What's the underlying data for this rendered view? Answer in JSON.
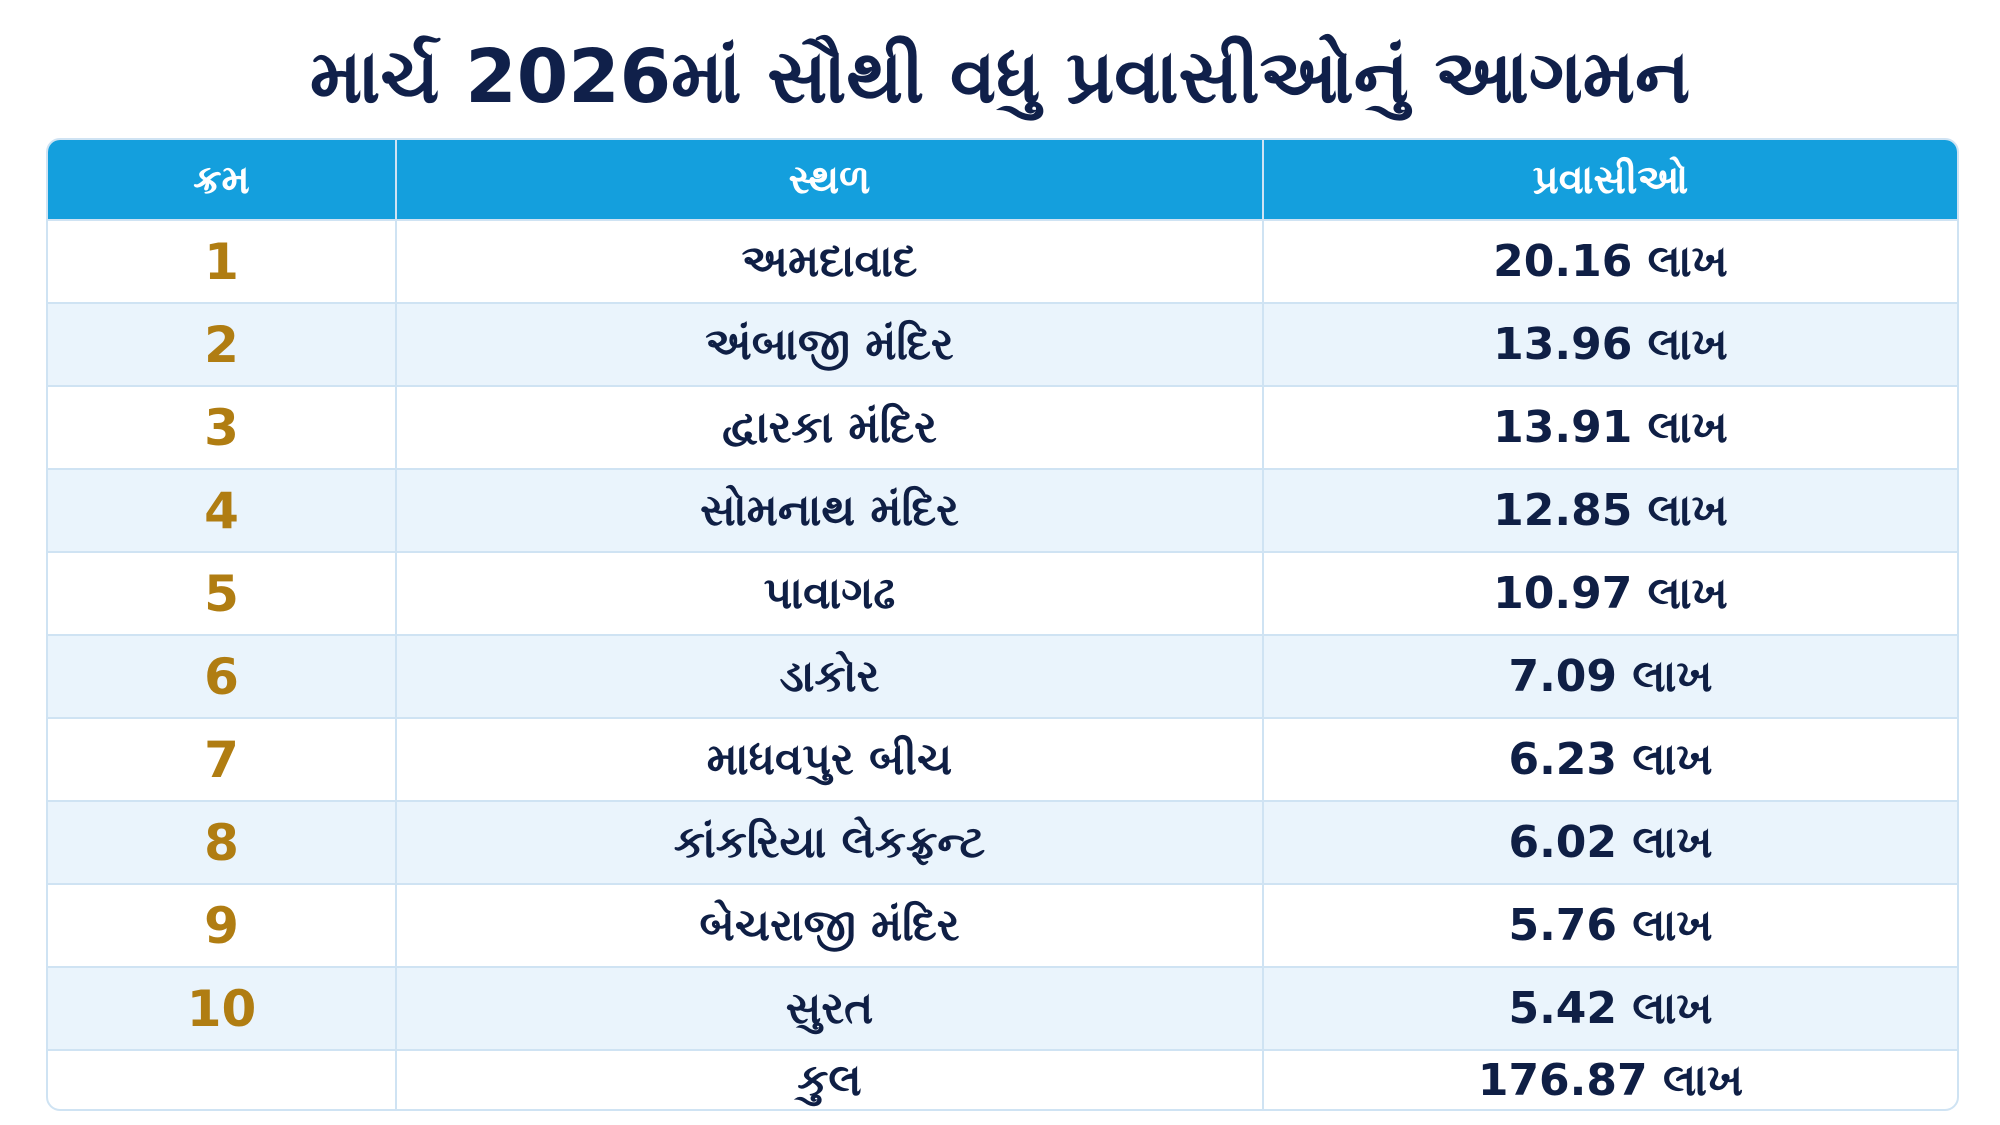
{
  "header": {
    "title": "માર્ચ 2026માં સૌથી વધુ પ્રવાસીઓનું આગમન"
  },
  "table": {
    "columns": [
      "ક્રમ",
      "સ્થળ",
      "પ્રવાસીઓ"
    ],
    "rows": [
      [
        "1",
        "અમદાવાદ",
        "20.16 લાખ"
      ],
      [
        "2",
        "અંબાજી મંદિર",
        "13.96 લાખ"
      ],
      [
        "3",
        "દ્વારકા મંદિર",
        "13.91 લાખ"
      ],
      [
        "4",
        "સોમનાથ મંદિર",
        "12.85 લાખ"
      ],
      [
        "5",
        "પાવાગઢ",
        "10.97 લાખ"
      ],
      [
        "6",
        "ડાકોર",
        "7.09 લાખ"
      ],
      [
        "7",
        "માધવપુર બીચ",
        "6.23 લાખ"
      ],
      [
        "8",
        "કાંકરિયા લેકફ્રન્ટ",
        "6.02 લાખ"
      ],
      [
        "9",
        "બેચરાજી મંદિર",
        "5.76 લાખ"
      ],
      [
        "10",
        "સુરત",
        "5.42 લાખ"
      ]
    ],
    "total": {
      "label": "કુલ",
      "value": "176.87 લાખ"
    }
  }
}
